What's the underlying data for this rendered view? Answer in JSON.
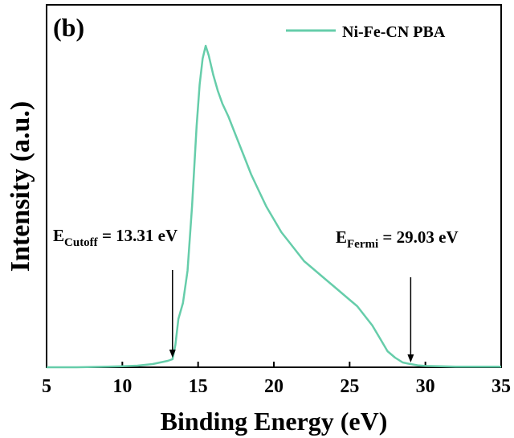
{
  "chart_data": {
    "type": "line",
    "panel_label": "(b)",
    "title": "",
    "xlabel": "Binding Energy (eV)",
    "ylabel": "Intensity (a.u.)",
    "xlim": [
      5,
      35
    ],
    "ylim": [
      0,
      1
    ],
    "xticks": [
      5,
      10,
      15,
      20,
      25,
      30,
      35
    ],
    "y_ticks_shown": false,
    "grid": false,
    "legend": {
      "position": "top-right",
      "entries": [
        "Ni-Fe-CN PBA"
      ]
    },
    "series": [
      {
        "name": "Ni-Fe-CN PBA",
        "color": "#66cdaa",
        "x": [
          5,
          7,
          9,
          10,
          11,
          12,
          12.5,
          13,
          13.31,
          13.5,
          13.7,
          14,
          14.3,
          14.6,
          14.9,
          15.1,
          15.3,
          15.5,
          15.7,
          16,
          16.3,
          16.6,
          17,
          17.5,
          18,
          18.5,
          19,
          19.5,
          20,
          20.5,
          21,
          21.5,
          22,
          22.5,
          23,
          23.5,
          24,
          24.5,
          25,
          25.5,
          26,
          26.5,
          27,
          27.5,
          28,
          28.5,
          29,
          29.03,
          29.5,
          30,
          31,
          32,
          33,
          35
        ],
        "y": [
          0.0,
          0.0,
          0.002,
          0.003,
          0.005,
          0.01,
          0.015,
          0.02,
          0.025,
          0.07,
          0.15,
          0.2,
          0.3,
          0.5,
          0.75,
          0.88,
          0.96,
          1.0,
          0.97,
          0.91,
          0.86,
          0.82,
          0.78,
          0.72,
          0.66,
          0.6,
          0.55,
          0.5,
          0.46,
          0.42,
          0.39,
          0.36,
          0.33,
          0.31,
          0.29,
          0.27,
          0.25,
          0.23,
          0.21,
          0.19,
          0.16,
          0.13,
          0.09,
          0.05,
          0.03,
          0.015,
          0.01,
          0.01,
          0.006,
          0.004,
          0.003,
          0.002,
          0.002,
          0.002
        ]
      }
    ],
    "annotations": [
      {
        "main": "E",
        "sub": "Cutoff",
        "rest": " = 13.31 eV",
        "x": 13.31
      },
      {
        "main": "E",
        "sub": "Fermi",
        "rest": " = 29.03 eV",
        "x": 29.03
      }
    ]
  }
}
